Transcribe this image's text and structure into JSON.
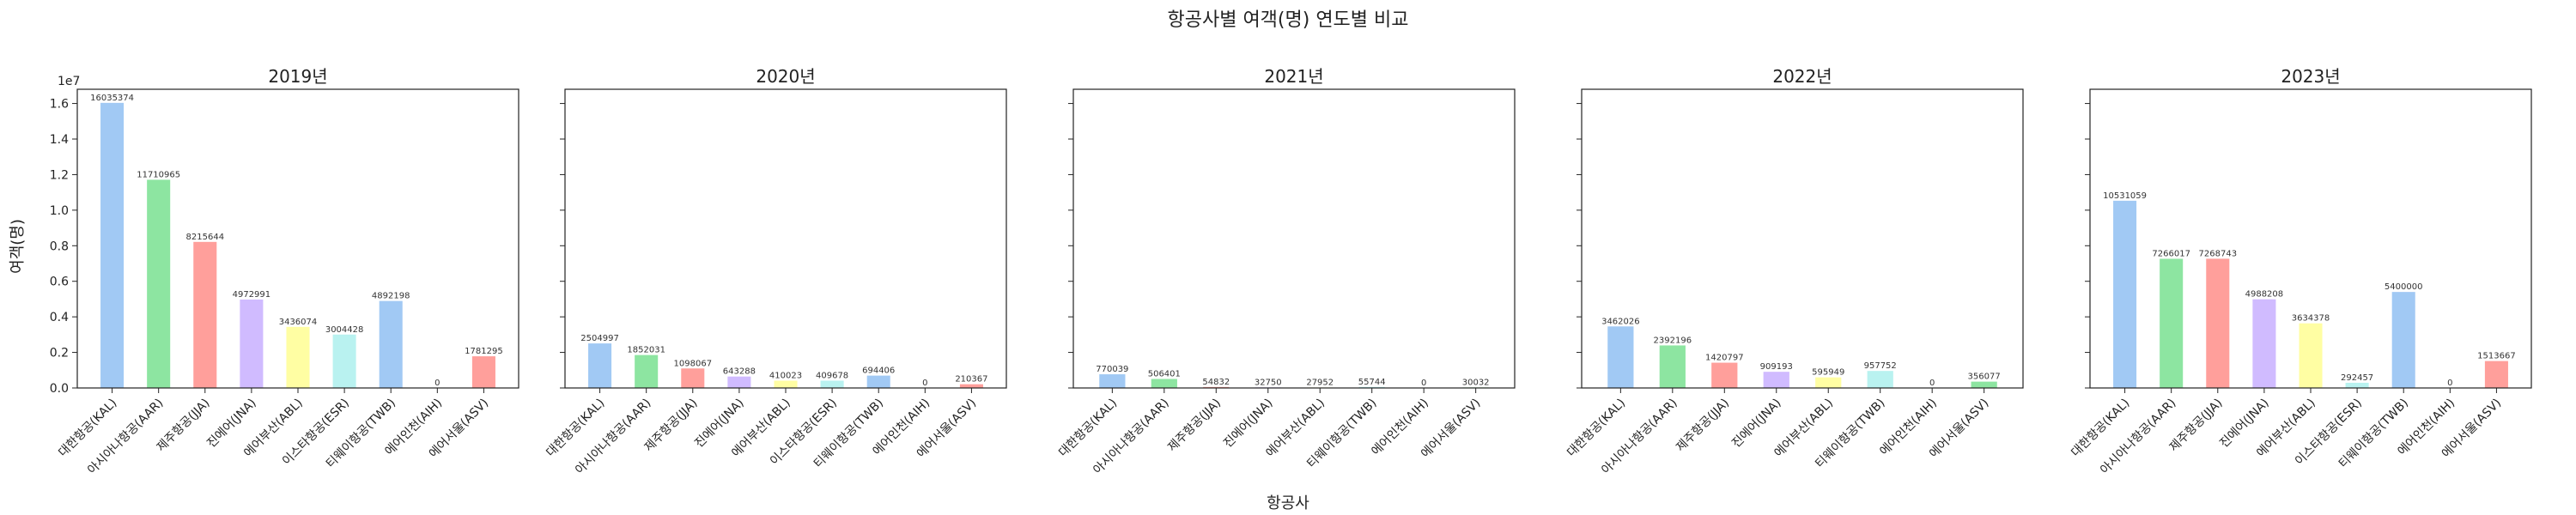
{
  "chart_data": {
    "type": "bar",
    "title": "항공사별 여객(명) 연도별 비교",
    "xlabel": "항공사",
    "ylabel": "여객(명)",
    "y_scale_label": "1e7",
    "ylim": [
      0,
      16800000
    ],
    "yticks": [
      0,
      2000000,
      4000000,
      6000000,
      8000000,
      10000000,
      12000000,
      14000000,
      16000000
    ],
    "ytick_labels": [
      "0.0",
      "0.2",
      "0.4",
      "0.6",
      "0.8",
      "1.0",
      "1.2",
      "1.4",
      "1.6"
    ],
    "colors": [
      "#a1c9f4",
      "#8de5a1",
      "#ff9f9b",
      "#d0bbff",
      "#fffea3",
      "#b9f2f0",
      "#a1c9f4",
      "#8de5a1",
      "#ff9f9b"
    ],
    "panels": [
      {
        "title": "2019년",
        "categories": [
          "대한항공(KAL)",
          "아시아나항공(AAR)",
          "제주항공(JJA)",
          "진에어(JNA)",
          "에어부산(ABL)",
          "이스타항공(ESR)",
          "티웨이항공(TWB)",
          "에어인천(AIH)",
          "에어서울(ASV)"
        ],
        "values": [
          16035374,
          11710965,
          8215644,
          4972991,
          3436074,
          3004428,
          4892198,
          0,
          1781295
        ]
      },
      {
        "title": "2020년",
        "categories": [
          "대한항공(KAL)",
          "아시아나항공(AAR)",
          "제주항공(JJA)",
          "진에어(JNA)",
          "에어부산(ABL)",
          "이스타항공(ESR)",
          "티웨이항공(TWB)",
          "에어인천(AIH)",
          "에어서울(ASV)"
        ],
        "values": [
          2504997,
          1852031,
          1098067,
          643288,
          410023,
          409678,
          694406,
          0,
          210367
        ]
      },
      {
        "title": "2021년",
        "categories": [
          "대한항공(KAL)",
          "아시아나항공(AAR)",
          "제주항공(JJA)",
          "진에어(JNA)",
          "에어부산(ABL)",
          "티웨이항공(TWB)",
          "에어인천(AIH)",
          "에어서울(ASV)"
        ],
        "values": [
          770039,
          506401,
          54832,
          32750,
          27952,
          55744,
          0,
          30032
        ]
      },
      {
        "title": "2022년",
        "categories": [
          "대한항공(KAL)",
          "아시아나항공(AAR)",
          "제주항공(JJA)",
          "진에어(JNA)",
          "에어부산(ABL)",
          "티웨이항공(TWB)",
          "에어인천(AIH)",
          "에어서울(ASV)"
        ],
        "values": [
          3462026,
          2392196,
          1420797,
          909193,
          595949,
          957752,
          0,
          356077
        ]
      },
      {
        "title": "2023년",
        "categories": [
          "대한항공(KAL)",
          "아시아나항공(AAR)",
          "제주항공(JJA)",
          "진에어(JNA)",
          "에어부산(ABL)",
          "이스타항공(ESR)",
          "티웨이항공(TWB)",
          "에어인천(AIH)",
          "에어서울(ASV)"
        ],
        "values": [
          10531059,
          7266017,
          7268743,
          4988208,
          3634378,
          292457,
          5400000,
          0,
          1513667
        ]
      }
    ]
  }
}
